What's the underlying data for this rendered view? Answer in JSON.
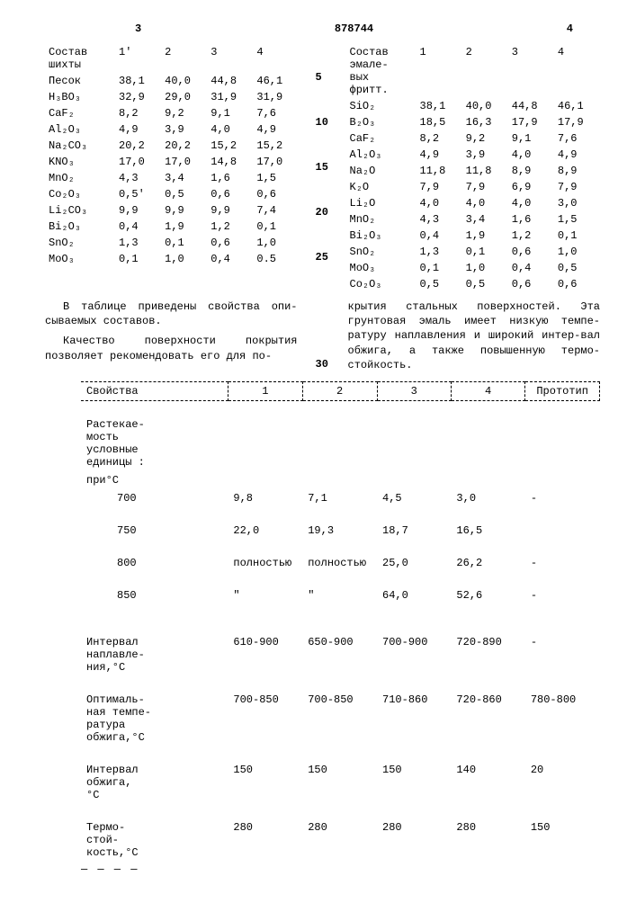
{
  "header": {
    "num_left": "3",
    "patent": "878744",
    "num_right": "4"
  },
  "left_table": {
    "header_label": "Состав\nшихты",
    "cols": [
      "1'",
      "2",
      "3",
      "4"
    ],
    "rows": [
      {
        "label": "Песок",
        "v": [
          "38,1",
          "40,0",
          "44,8",
          "46,1"
        ]
      },
      {
        "label": "H₃BO₃",
        "v": [
          "32,9",
          "29,0",
          "31,9",
          "31,9"
        ]
      },
      {
        "label": "CaF₂",
        "v": [
          "8,2",
          "9,2",
          "9,1",
          "7,6"
        ]
      },
      {
        "label": "Al₂O₃",
        "v": [
          "4,9",
          "3,9",
          "4,0",
          "4,9"
        ]
      },
      {
        "label": "Na₂CO₃",
        "v": [
          "20,2",
          "20,2",
          "15,2",
          "15,2"
        ]
      },
      {
        "label": "KNO₃",
        "v": [
          "17,0",
          "17,0",
          "14,8",
          "17,0"
        ]
      },
      {
        "label": "MnO₂",
        "v": [
          "4,3",
          "3,4",
          "1,6",
          "1,5"
        ]
      },
      {
        "label": "Co₂O₃",
        "v": [
          "0,5'",
          "0,5",
          "0,6",
          "0,6"
        ]
      },
      {
        "label": "Li₂CO₃",
        "v": [
          "9,9",
          "9,9",
          "9,9",
          "7,4"
        ]
      },
      {
        "label": "Bi₂O₃",
        "v": [
          "0,4",
          "1,9",
          "1,2",
          "0,1"
        ]
      },
      {
        "label": "SnO₂",
        "v": [
          "1,3",
          "0,1",
          "0,6",
          "1,0"
        ]
      },
      {
        "label": "MoO₃",
        "v": [
          "0,1",
          "1,0",
          "0,4",
          "0.5"
        ]
      }
    ]
  },
  "line_numbers": [
    "5",
    "10",
    "15",
    "20",
    "25"
  ],
  "right_table": {
    "header_label": "Состав\nэмале-\nвых\nфритт.",
    "cols": [
      "1",
      "2",
      "3",
      "4"
    ],
    "rows": [
      {
        "label": "SiO₂",
        "v": [
          "38,1",
          "40,0",
          "44,8",
          "46,1"
        ]
      },
      {
        "label": "B₂O₃",
        "v": [
          "18,5",
          "16,3",
          "17,9",
          "17,9"
        ]
      },
      {
        "label": "CaF₂",
        "v": [
          "8,2",
          "9,2",
          "9,1",
          "7,6"
        ]
      },
      {
        "label": "Al₂O₃",
        "v": [
          "4,9",
          "3,9",
          "4,0",
          "4,9"
        ]
      },
      {
        "label": "Na₂O",
        "v": [
          "11,8",
          "11,8",
          "8,9",
          "8,9"
        ]
      },
      {
        "label": "K₂O",
        "v": [
          "7,9",
          "7,9",
          "6,9",
          "7,9"
        ]
      },
      {
        "label": "Li₂O",
        "v": [
          "4,0",
          "4,0",
          "4,0",
          "3,0"
        ]
      },
      {
        "label": "MnO₂",
        "v": [
          "4,3",
          "3,4",
          "1,6",
          "1,5"
        ]
      },
      {
        "label": "Bi₂O₃",
        "v": [
          "0,4",
          "1,9",
          "1,2",
          "0,1"
        ]
      },
      {
        "label": "SnO₂",
        "v": [
          "1,3",
          "0,1",
          "0,6",
          "1,0"
        ]
      },
      {
        "label": "MoO₃",
        "v": [
          "0,1",
          "1,0",
          "0,4",
          "0,5"
        ]
      },
      {
        "label": "Co₂O₃",
        "v": [
          "0,5",
          "0,5",
          "0,6",
          "0,6"
        ]
      }
    ]
  },
  "text": {
    "left1": "В таблице приведены свойства опи-сываемых составов.",
    "left2": "Качество поверхности покрытия позволяет рекомендовать его для по-",
    "num30": "30",
    "right": "крытия стальных поверхностей. Эта грунтовая эмаль имеет низкую темпе-ратуру наплавления и широкий интер-вал обжига, а также повышенную термо-стойкость."
  },
  "props": {
    "header": [
      "Свойства",
      "1",
      "2",
      "3",
      "4",
      "Прототип"
    ],
    "section1_label": "Растекае-\nмость\nусловные\nединицы :",
    "sub_label": "при°С",
    "flow": [
      {
        "t": "700",
        "v": [
          "9,8",
          "7,1",
          "4,5",
          "3,0",
          "-"
        ]
      },
      {
        "t": "750",
        "v": [
          "22,0",
          "19,3",
          "18,7",
          "16,5",
          ""
        ]
      },
      {
        "t": "800",
        "v": [
          "полностью",
          "полностью",
          "25,0",
          "26,2",
          "-"
        ]
      },
      {
        "t": "850",
        "v": [
          "\"",
          "\"",
          "64,0",
          "52,6",
          "-"
        ]
      }
    ],
    "melting": {
      "label": "Интервал\nнаплавле-\nния,°С",
      "v": [
        "610-900",
        "650-900",
        "700-900",
        "720-890",
        "-"
      ]
    },
    "opt_temp": {
      "label": "Оптималь-\nная темпе-\nратура\nобжига,°С",
      "v": [
        "700-850",
        "700-850",
        "710-860",
        "720-860",
        "780-800"
      ]
    },
    "fire_interval": {
      "label": "Интервал\nобжига,\n°С",
      "v": [
        "150",
        "150",
        "150",
        "140",
        "20"
      ]
    },
    "thermo": {
      "label": "Термо-\nстой-\nкость,°С",
      "v": [
        "280",
        "280",
        "280",
        "280",
        "150"
      ]
    }
  }
}
